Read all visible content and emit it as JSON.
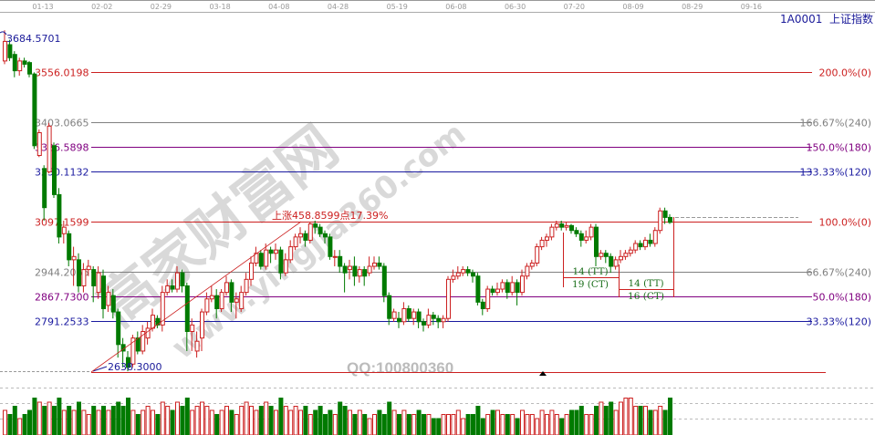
{
  "title": "1A0001  上证指数",
  "watermark": {
    "main": "高家财富网",
    "site": "www.yingjia360.com",
    "qq": "QQ:100800360"
  },
  "chart_data": {
    "type": "candlestick",
    "x_ticks": [
      "01-13",
      "02-02",
      "02-29",
      "03-18",
      "04-08",
      "04-28",
      "05-19",
      "06-08",
      "06-30",
      "07-20",
      "08-09",
      "08-29",
      "09-16"
    ],
    "high_label": "3684.5701",
    "low_label": "2638.3000",
    "rise_annotation": "上涨458.8599点17.39%",
    "fib_levels": [
      {
        "price": 3556.0198,
        "label": "3556.0198",
        "pct": "200.0%(0)",
        "color": "#cc2020"
      },
      {
        "price": 3403.0665,
        "label": "3403.0665",
        "pct": "166.67%(240)",
        "color": "#808080"
      },
      {
        "price": 3326.5898,
        "label": "3326.5898",
        "pct": "150.0%(180)",
        "color": "#800080"
      },
      {
        "price": 3250.1132,
        "label": "3250.1132",
        "pct": "133.33%(120)",
        "color": "#1a1aa0"
      },
      {
        "price": 3097.1599,
        "label": "3097.1599",
        "pct": "100.0%(0)",
        "color": "#cc2020"
      },
      {
        "price": 2944.2066,
        "label": "2944.2066",
        "pct": "66.67%(240)",
        "color": "#808080"
      },
      {
        "price": 2867.73,
        "label": "2867.7300",
        "pct": "50.0%(180)",
        "color": "#800080"
      },
      {
        "price": 2791.2533,
        "label": "2791.2533",
        "pct": "33.33%(120)",
        "color": "#1a1aa0"
      }
    ],
    "cycle_labels": {
      "tt1": "14 (TT)",
      "ct1": "19 (CT)",
      "tt2": "14 (TT)",
      "ct2": "16 (CT)"
    },
    "colors": {
      "up": "#cc2020",
      "down": "#007a00",
      "title": "#1a1a99"
    },
    "ohlc_format": [
      "open",
      "close",
      "high",
      "low"
    ],
    "candles": [
      [
        3590,
        3650,
        3684,
        3580
      ],
      [
        3640,
        3600,
        3655,
        3590
      ],
      [
        3610,
        3560,
        3620,
        3540
      ],
      [
        3560,
        3590,
        3600,
        3545
      ],
      [
        3590,
        3580,
        3600,
        3570
      ],
      [
        3585,
        3550,
        3590,
        3540
      ],
      [
        3550,
        3330,
        3555,
        3320
      ],
      [
        3300,
        3370,
        3380,
        3295
      ],
      [
        3260,
        3140,
        3270,
        3100
      ],
      [
        3250,
        3390,
        3400,
        3245
      ],
      [
        3330,
        3180,
        3340,
        3170
      ],
      [
        3180,
        3050,
        3200,
        3030
      ],
      [
        3060,
        3080,
        3100,
        3030
      ],
      [
        3060,
        2980,
        3070,
        2960
      ],
      [
        2980,
        2990,
        3020,
        2900
      ],
      [
        2980,
        2900,
        3000,
        2880
      ],
      [
        2900,
        2950,
        2970,
        2880
      ],
      [
        2950,
        2960,
        2980,
        2930
      ],
      [
        2950,
        2900,
        2960,
        2850
      ],
      [
        2880,
        2940,
        2960,
        2860
      ],
      [
        2930,
        2830,
        2950,
        2800
      ],
      [
        2840,
        2880,
        2900,
        2820
      ],
      [
        2870,
        2820,
        2890,
        2800
      ],
      [
        2820,
        2720,
        2830,
        2680
      ],
      [
        2720,
        2700,
        2740,
        2650
      ],
      [
        2680,
        2650,
        2700,
        2638
      ],
      [
        2660,
        2740,
        2750,
        2650
      ],
      [
        2740,
        2700,
        2760,
        2690
      ],
      [
        2700,
        2760,
        2780,
        2690
      ],
      [
        2740,
        2770,
        2790,
        2720
      ],
      [
        2770,
        2810,
        2830,
        2760
      ],
      [
        2800,
        2780,
        2810,
        2770
      ],
      [
        2780,
        2880,
        2900,
        2760
      ],
      [
        2880,
        2900,
        2920,
        2870
      ],
      [
        2900,
        2890,
        2920,
        2880
      ],
      [
        2890,
        2940,
        2960,
        2880
      ],
      [
        2940,
        2900,
        2950,
        2880
      ],
      [
        2900,
        2760,
        2910,
        2700
      ],
      [
        2760,
        2780,
        2800,
        2700
      ],
      [
        2700,
        2730,
        2760,
        2680
      ],
      [
        2740,
        2820,
        2830,
        2700
      ],
      [
        2820,
        2860,
        2880,
        2810
      ],
      [
        2860,
        2870,
        2900,
        2850
      ],
      [
        2870,
        2830,
        2890,
        2800
      ],
      [
        2830,
        2880,
        2890,
        2820
      ],
      [
        2880,
        2910,
        2930,
        2870
      ],
      [
        2910,
        2850,
        2920,
        2820
      ],
      [
        2850,
        2860,
        2880,
        2800
      ],
      [
        2830,
        2880,
        2900,
        2820
      ],
      [
        2880,
        2920,
        2940,
        2870
      ],
      [
        2920,
        2970,
        2990,
        2900
      ],
      [
        2970,
        3000,
        3020,
        2960
      ],
      [
        3000,
        2960,
        3010,
        2950
      ],
      [
        2960,
        3010,
        3030,
        2950
      ],
      [
        3010,
        3000,
        3020,
        2970
      ],
      [
        3000,
        3010,
        3030,
        2980
      ],
      [
        3010,
        2940,
        3020,
        2920
      ],
      [
        2940,
        2980,
        3000,
        2930
      ],
      [
        2980,
        3020,
        3040,
        2970
      ],
      [
        3020,
        3050,
        3060,
        3010
      ],
      [
        3050,
        3060,
        3080,
        3030
      ],
      [
        3060,
        3040,
        3070,
        3020
      ],
      [
        3040,
        3090,
        3097,
        3030
      ],
      [
        3090,
        3080,
        3100,
        3060
      ],
      [
        3080,
        3060,
        3090,
        3050
      ],
      [
        3060,
        3050,
        3070,
        3030
      ],
      [
        3050,
        2990,
        3060,
        2980
      ],
      [
        2990,
        2990,
        3010,
        2960
      ],
      [
        2990,
        2960,
        3010,
        2940
      ],
      [
        2960,
        2940,
        2970,
        2880
      ],
      [
        2950,
        2960,
        2980,
        2920
      ],
      [
        2960,
        2930,
        2990,
        2900
      ],
      [
        2930,
        2950,
        2960,
        2910
      ],
      [
        2950,
        2930,
        2960,
        2900
      ],
      [
        2940,
        2960,
        2990,
        2930
      ],
      [
        2960,
        2970,
        2990,
        2950
      ],
      [
        2970,
        2960,
        2990,
        2950
      ],
      [
        2960,
        2870,
        2970,
        2850
      ],
      [
        2870,
        2800,
        2880,
        2780
      ],
      [
        2800,
        2820,
        2830,
        2790
      ],
      [
        2800,
        2790,
        2820,
        2770
      ],
      [
        2790,
        2830,
        2850,
        2780
      ],
      [
        2830,
        2800,
        2840,
        2790
      ],
      [
        2800,
        2820,
        2830,
        2780
      ],
      [
        2820,
        2790,
        2830,
        2770
      ],
      [
        2790,
        2780,
        2800,
        2760
      ],
      [
        2780,
        2810,
        2830,
        2770
      ],
      [
        2810,
        2800,
        2820,
        2780
      ],
      [
        2800,
        2790,
        2810,
        2770
      ],
      [
        2790,
        2800,
        2810,
        2770
      ],
      [
        2800,
        2920,
        2930,
        2790
      ],
      [
        2920,
        2930,
        2950,
        2910
      ],
      [
        2930,
        2940,
        2960,
        2920
      ],
      [
        2940,
        2950,
        2960,
        2930
      ],
      [
        2950,
        2940,
        2960,
        2930
      ],
      [
        2940,
        2930,
        2950,
        2910
      ],
      [
        2930,
        2850,
        2940,
        2840
      ],
      [
        2850,
        2830,
        2860,
        2810
      ],
      [
        2830,
        2890,
        2900,
        2820
      ],
      [
        2890,
        2880,
        2900,
        2870
      ],
      [
        2880,
        2890,
        2910,
        2870
      ],
      [
        2890,
        2910,
        2920,
        2880
      ],
      [
        2910,
        2880,
        2920,
        2860
      ],
      [
        2880,
        2910,
        2930,
        2870
      ],
      [
        2910,
        2880,
        2920,
        2840
      ],
      [
        2880,
        2930,
        2950,
        2870
      ],
      [
        2930,
        2960,
        2970,
        2920
      ],
      [
        2960,
        2970,
        2980,
        2950
      ],
      [
        2970,
        3020,
        3030,
        2960
      ],
      [
        3020,
        3040,
        3050,
        3010
      ],
      [
        3040,
        3050,
        3060,
        3020
      ],
      [
        3050,
        3080,
        3090,
        3040
      ],
      [
        3080,
        3090,
        3100,
        3070
      ],
      [
        3090,
        3080,
        3100,
        3070
      ],
      [
        3080,
        3085,
        3095,
        3070
      ],
      [
        3085,
        3070,
        3090,
        3060
      ],
      [
        3070,
        3060,
        3080,
        3050
      ],
      [
        3060,
        3040,
        3070,
        3020
      ],
      [
        3040,
        3050,
        3070,
        3030
      ],
      [
        3050,
        3080,
        3090,
        3040
      ],
      [
        3080,
        2990,
        3090,
        2960
      ],
      [
        2990,
        3000,
        3010,
        2980
      ],
      [
        3000,
        2990,
        3010,
        2970
      ],
      [
        2990,
        2960,
        3000,
        2940
      ],
      [
        2960,
        2980,
        2990,
        2950
      ],
      [
        2980,
        2990,
        3010,
        2970
      ],
      [
        2990,
        3000,
        3010,
        2980
      ],
      [
        3000,
        3010,
        3020,
        2990
      ],
      [
        3010,
        3030,
        3040,
        3000
      ],
      [
        3030,
        3020,
        3040,
        3010
      ],
      [
        3020,
        3040,
        3050,
        3010
      ],
      [
        3040,
        3030,
        3060,
        3020
      ],
      [
        3030,
        3070,
        3080,
        3020
      ],
      [
        3070,
        3130,
        3140,
        3060
      ],
      [
        3130,
        3110,
        3140,
        3090
      ],
      [
        3110,
        3095,
        3120,
        3090
      ]
    ],
    "volume_relative": [
      0.6,
      0.5,
      0.7,
      0.4,
      0.5,
      0.6,
      0.9,
      0.8,
      0.7,
      0.8,
      0.7,
      0.9,
      0.6,
      0.7,
      0.6,
      0.8,
      0.6,
      0.5,
      0.7,
      0.6,
      0.7,
      0.6,
      0.7,
      0.8,
      0.7,
      0.9,
      0.6,
      0.5,
      0.6,
      0.7,
      0.6,
      0.5,
      0.8,
      0.7,
      0.6,
      0.8,
      0.7,
      0.9,
      0.6,
      0.7,
      0.8,
      0.7,
      0.6,
      0.5,
      0.6,
      0.7,
      0.6,
      0.5,
      0.7,
      0.8,
      0.7,
      0.6,
      0.7,
      0.8,
      0.7,
      0.6,
      0.9,
      0.7,
      0.6,
      0.7,
      0.6,
      0.7,
      0.5,
      0.6,
      0.7,
      0.5,
      0.6,
      0.5,
      0.8,
      0.7,
      0.6,
      0.5,
      0.6,
      0.5,
      0.4,
      0.5,
      0.6,
      0.5,
      0.8,
      0.6,
      0.5,
      0.6,
      0.5,
      0.5,
      0.6,
      0.5,
      0.5,
      0.4,
      0.4,
      0.5,
      0.5,
      0.5,
      0.6,
      0.4,
      0.5,
      0.5,
      0.7,
      0.4,
      0.5,
      0.6,
      0.6,
      0.5,
      0.5,
      0.5,
      0.4,
      0.6,
      0.5,
      0.5,
      0.4,
      0.6,
      0.5,
      0.6,
      0.5,
      0.4,
      0.5,
      0.6,
      0.6,
      0.7,
      0.5,
      0.5,
      0.7,
      0.8,
      0.7,
      0.8,
      0.6,
      0.8,
      0.9,
      0.9,
      0.7,
      0.7,
      0.7,
      0.6,
      0.6,
      0.7,
      0.6,
      0.9
    ]
  }
}
